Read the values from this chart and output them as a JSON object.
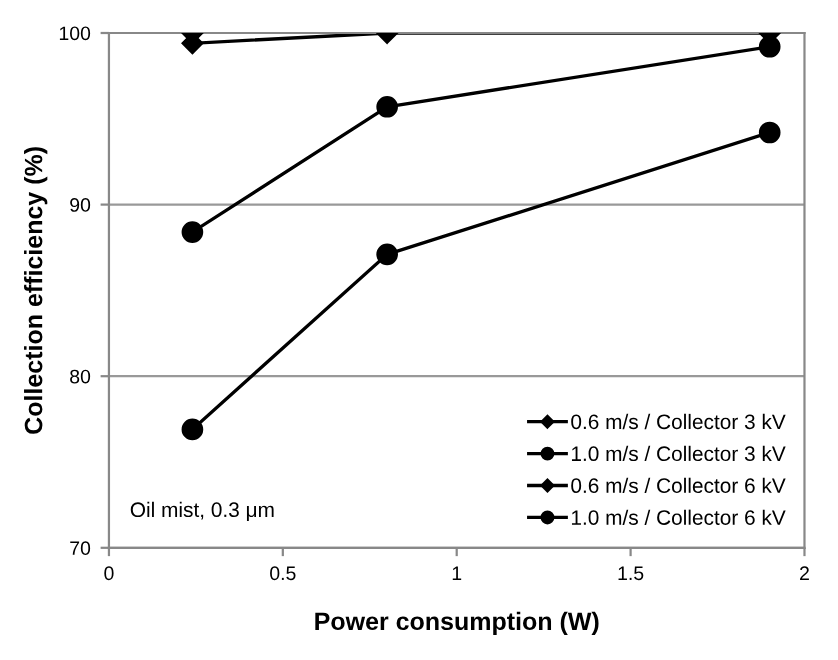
{
  "chart_data": {
    "type": "line",
    "xlabel": "Power consumption (W)",
    "ylabel": "Collection efficiency (%)",
    "xlim": [
      0,
      2
    ],
    "xticks": [
      0,
      0.5,
      1,
      1.5,
      2
    ],
    "ylim": [
      70,
      100
    ],
    "yticks": [
      70,
      80,
      90,
      100
    ],
    "grid": "y",
    "legend": "bottom right",
    "line_style": "solid",
    "annotations": [
      "Oil mist, 0.3 μm"
    ],
    "series": [
      {
        "name": "0.6 m/s / Collector 3 kV",
        "color": "#000000",
        "marker": "diamond",
        "x": [
          0.24,
          0.8,
          1.9
        ],
        "values": [
          99.4,
          100,
          100
        ]
      },
      {
        "name": "1.0 m/s / Collector 3 kV",
        "color": "#000000",
        "marker": "circle",
        "x": [
          0.24,
          0.8,
          1.9
        ],
        "values": [
          76.9,
          87.1,
          94.2
        ]
      },
      {
        "name": "0.6 m/s / Collector 6 kV",
        "color": "#000000",
        "marker": "diamond",
        "x": [
          0.24
        ],
        "values": [
          100
        ]
      },
      {
        "name": "1.0 m/s / Collector 6 kV",
        "color": "#000000",
        "marker": "circle",
        "x": [
          0.24,
          0.8,
          1.9
        ],
        "values": [
          88.4,
          95.7,
          99.2
        ]
      }
    ]
  }
}
